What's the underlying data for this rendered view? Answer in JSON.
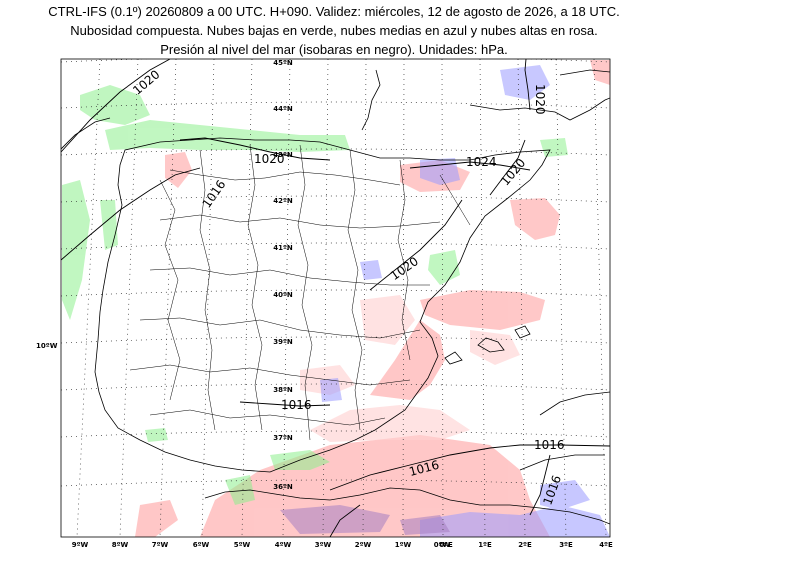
{
  "header": {
    "line1": "CTRL-IFS (0.1º) 20260809 a 00 UTC. H+090. Validez: miércoles, 12 de agosto de 2026, a 18 UTC.",
    "line2": "Nubosidad compuesta. Nubes bajas en verde, nubes medias en azul y nubes altas en rosa.",
    "line3": "Presión al nivel del mar (isobaras en negro). Unidades: hPa."
  },
  "colors": {
    "low_clouds": "#8ef08e",
    "mid_clouds": "#9a9aff",
    "high_clouds": "#ff9a9a",
    "isobar": "#000000",
    "coast": "#000000",
    "grid": "#333333"
  },
  "axis": {
    "lon_labels": [
      "9ºW",
      "8ºW",
      "7ºW",
      "6ºW",
      "5ºW",
      "4ºW",
      "3ºW",
      "2ºW",
      "1ºW",
      "0ºW",
      "0ºE",
      "1ºE",
      "2ºE",
      "3ºE",
      "4ºE"
    ],
    "lat_labels": [
      "45ºN",
      "44ºN",
      "43ºN",
      "42ºN",
      "41ºN",
      "40ºN",
      "39ºN",
      "38ºN",
      "37ºN",
      "36ºN"
    ],
    "side_label": "10ºW"
  },
  "isobars": [
    {
      "value": "1020"
    },
    {
      "value": "1020"
    },
    {
      "value": "1016"
    },
    {
      "value": "1020"
    },
    {
      "value": "1024"
    },
    {
      "value": "1020"
    },
    {
      "value": "1020"
    },
    {
      "value": "1016"
    },
    {
      "value": "1016"
    },
    {
      "value": "1016"
    },
    {
      "value": "1016"
    }
  ]
}
